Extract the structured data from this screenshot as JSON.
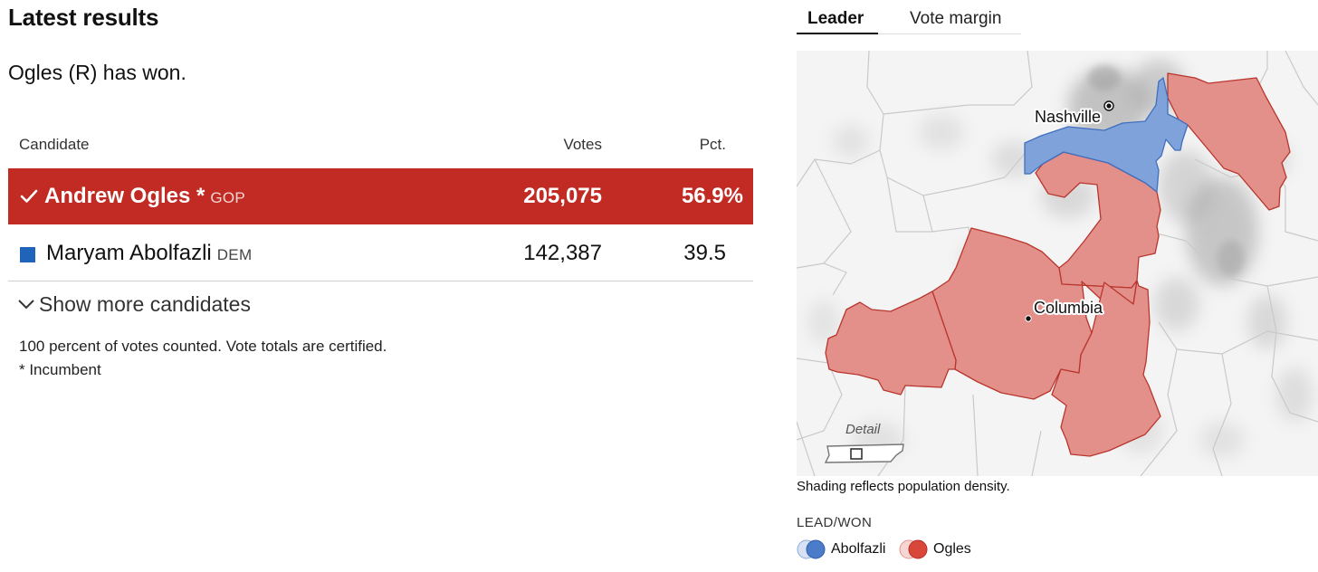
{
  "results": {
    "title": "Latest results",
    "status": "Ogles (R) has won.",
    "columns": {
      "candidate": "Candidate",
      "votes": "Votes",
      "pct": "Pct."
    },
    "candidates": [
      {
        "name": "Andrew Ogles *",
        "party": "GOP",
        "votes": "205,075",
        "pct": "56.9%",
        "winner": true,
        "color": "#c12b24"
      },
      {
        "name": "Maryam Abolfazli",
        "party": "DEM",
        "votes": "142,387",
        "pct": "39.5",
        "winner": false,
        "color": "#1f64b8"
      }
    ],
    "show_more": "Show more candidates",
    "note_counted": "100 percent of votes counted. Vote totals are certified.",
    "note_incumbent": "* Incumbent"
  },
  "map": {
    "tabs": [
      {
        "label": "Leader",
        "active": true
      },
      {
        "label": "Vote margin",
        "active": false
      }
    ],
    "cities": {
      "nashville": "Nashville",
      "columbia": "Columbia"
    },
    "detail_label": "Detail",
    "caption": "Shading reflects population density.",
    "legend_title": "LEAD/WON",
    "legend": [
      {
        "label": "Abolfazli",
        "color": "#4a7cc9"
      },
      {
        "label": "Ogles",
        "color": "#d9473a"
      }
    ],
    "colors": {
      "dem_fill": "#7fa2da",
      "rep_fill": "#e4908a",
      "rep_stroke": "#b8362e",
      "dem_stroke": "#3f6fbf"
    }
  }
}
